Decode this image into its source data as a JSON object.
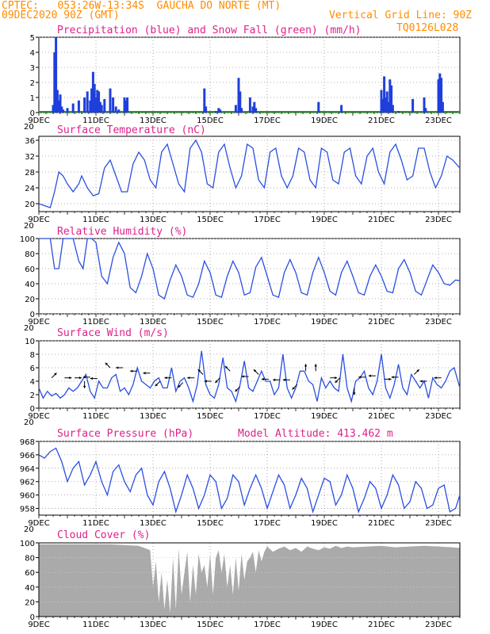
{
  "header": {
    "line1": "CPTEC:   053:26W-13:34S  GAUCHA DO NORTE (MT)",
    "line2_left": "09DEC2020 90Z (GMT)",
    "line2_right": "Vertical Grid Line: 90Z",
    "line3_right": "TQ0126L028"
  },
  "colors": {
    "precip": "#1f3fdc",
    "snow": "#1aa01a",
    "line": "#2a4fe0",
    "cloud": "#aaaaaa",
    "title": "#e0208a",
    "header": "#ff8c00"
  },
  "x_ticks": [
    "9DEC",
    "11DEC",
    "13DEC",
    "15DEC",
    "17DEC",
    "19DEC",
    "21DEC",
    "23DEC"
  ],
  "x_tick_top_fragment": "20",
  "chart_data": [
    {
      "type": "bar",
      "title": "Precipitation (blue) and Snow Fall (green) (mm/h)",
      "ylim": [
        0,
        5
      ],
      "yticks": [
        0,
        1,
        2,
        3,
        4,
        5
      ],
      "x_days": [
        0.5,
        0.55,
        0.6,
        0.65,
        0.7,
        0.75,
        0.8,
        0.85,
        1.0,
        1.2,
        1.4,
        1.6,
        1.7,
        1.8,
        1.85,
        1.9,
        1.95,
        2.0,
        2.05,
        2.1,
        2.15,
        2.2,
        2.3,
        2.5,
        2.6,
        2.7,
        2.8,
        3.0,
        3.05,
        3.1,
        5.8,
        5.85,
        6.2,
        6.3,
        6.35,
        6.9,
        7.0,
        7.05,
        7.1,
        7.4,
        7.5,
        7.55,
        7.6,
        9.8,
        10.6,
        12.0,
        12.05,
        12.1,
        12.15,
        12.2,
        12.25,
        12.3,
        12.35,
        12.4,
        12.6,
        13.1,
        13.5,
        13.55,
        14.0,
        14.05,
        14.1,
        14.15
      ],
      "values": [
        0.5,
        4.0,
        5.0,
        1.5,
        0.8,
        1.2,
        0.4,
        0.2,
        0.3,
        0.6,
        0.8,
        1.0,
        1.4,
        0.8,
        1.6,
        2.7,
        1.9,
        1.0,
        1.5,
        1.4,
        0.7,
        0.5,
        0.9,
        1.6,
        1.0,
        0.4,
        0.2,
        1.0,
        0.8,
        1.0,
        1.6,
        0.4,
        0.1,
        0.3,
        0.2,
        0.5,
        2.3,
        1.4,
        0.3,
        1.0,
        0.4,
        0.7,
        0.3,
        0.7,
        0.5,
        1.5,
        0.9,
        2.4,
        1.0,
        1.4,
        0.7,
        2.2,
        1.8,
        0.5,
        0.1,
        0.9,
        1.0,
        0.3,
        2.2,
        2.6,
        2.3,
        0.7
      ],
      "snow_values": 0,
      "xlim": [
        0,
        14.75
      ]
    },
    {
      "type": "line",
      "title": "Surface Temperature (nC)",
      "ylim": [
        18,
        37
      ],
      "yticks": [
        20,
        24,
        28,
        32,
        36
      ],
      "x_days": [
        0,
        0.2,
        0.4,
        0.55,
        0.7,
        0.85,
        1.0,
        1.2,
        1.4,
        1.5,
        1.7,
        1.9,
        2.1,
        2.3,
        2.5,
        2.7,
        2.9,
        3.1,
        3.3,
        3.5,
        3.7,
        3.9,
        4.1,
        4.3,
        4.5,
        4.7,
        4.9,
        5.1,
        5.3,
        5.5,
        5.7,
        5.9,
        6.1,
        6.3,
        6.5,
        6.7,
        6.9,
        7.1,
        7.3,
        7.5,
        7.7,
        7.9,
        8.1,
        8.3,
        8.5,
        8.7,
        8.9,
        9.1,
        9.3,
        9.5,
        9.7,
        9.9,
        10.1,
        10.3,
        10.5,
        10.7,
        10.9,
        11.1,
        11.3,
        11.5,
        11.7,
        11.9,
        12.1,
        12.3,
        12.5,
        12.7,
        12.9,
        13.1,
        13.3,
        13.5,
        13.7,
        13.9,
        14.1,
        14.3,
        14.5,
        14.75
      ],
      "values": [
        20,
        19.5,
        19,
        23,
        28,
        27,
        25,
        23,
        25,
        27,
        24,
        22,
        22.5,
        29,
        31,
        27,
        23,
        23,
        30,
        33,
        31,
        26,
        24,
        33,
        35,
        30,
        25,
        23,
        34,
        36,
        33,
        25,
        24,
        33,
        35,
        29,
        24,
        27,
        35,
        34,
        26,
        24,
        33,
        34,
        27,
        24,
        27,
        34,
        33,
        26,
        24,
        34,
        33,
        26,
        25,
        33,
        34,
        27,
        25,
        32,
        34,
        28,
        25,
        33,
        35,
        31,
        26,
        27,
        34,
        34,
        28,
        24,
        27,
        32,
        31,
        29
      ],
      "xlim": [
        0,
        14.75
      ]
    },
    {
      "type": "line",
      "title": "Relative Humidity (%)",
      "ylim": [
        0,
        100
      ],
      "yticks": [
        0,
        20,
        40,
        60,
        80,
        100
      ],
      "x_days": [
        0,
        0.2,
        0.4,
        0.55,
        0.7,
        0.85,
        1.0,
        1.2,
        1.4,
        1.55,
        1.7,
        1.85,
        2.0,
        2.2,
        2.4,
        2.6,
        2.8,
        3.0,
        3.2,
        3.4,
        3.6,
        3.8,
        4.0,
        4.2,
        4.4,
        4.6,
        4.8,
        5.0,
        5.2,
        5.4,
        5.6,
        5.8,
        6.0,
        6.2,
        6.4,
        6.6,
        6.8,
        7.0,
        7.2,
        7.4,
        7.6,
        7.8,
        8.0,
        8.2,
        8.4,
        8.6,
        8.8,
        9.0,
        9.2,
        9.4,
        9.6,
        9.8,
        10.0,
        10.2,
        10.4,
        10.6,
        10.8,
        11.0,
        11.2,
        11.4,
        11.6,
        11.8,
        12.0,
        12.2,
        12.4,
        12.6,
        12.8,
        13.0,
        13.2,
        13.4,
        13.6,
        13.8,
        14.0,
        14.2,
        14.4,
        14.6,
        14.75
      ],
      "values": [
        100,
        100,
        100,
        60,
        60,
        100,
        100,
        100,
        70,
        60,
        100,
        100,
        95,
        50,
        40,
        75,
        95,
        80,
        35,
        28,
        50,
        80,
        60,
        25,
        20,
        45,
        65,
        50,
        25,
        22,
        40,
        70,
        55,
        25,
        22,
        50,
        70,
        55,
        25,
        28,
        62,
        75,
        50,
        25,
        22,
        55,
        72,
        55,
        28,
        25,
        55,
        75,
        55,
        30,
        25,
        55,
        70,
        50,
        28,
        25,
        50,
        65,
        50,
        30,
        28,
        60,
        72,
        55,
        30,
        25,
        45,
        65,
        55,
        40,
        38,
        45,
        44
      ],
      "xlim": [
        0,
        14.75
      ]
    },
    {
      "type": "line",
      "title": "Surface Wind (m/s)",
      "ylim": [
        0,
        10
      ],
      "yticks": [
        0,
        2,
        4,
        6,
        8,
        10
      ],
      "x_days": [
        0,
        0.15,
        0.3,
        0.45,
        0.6,
        0.75,
        0.9,
        1.05,
        1.2,
        1.35,
        1.5,
        1.65,
        1.8,
        1.95,
        2.1,
        2.25,
        2.4,
        2.55,
        2.7,
        2.85,
        3.0,
        3.15,
        3.3,
        3.45,
        3.6,
        3.75,
        3.9,
        4.05,
        4.2,
        4.35,
        4.5,
        4.65,
        4.8,
        4.95,
        5.1,
        5.25,
        5.4,
        5.55,
        5.7,
        5.85,
        6.0,
        6.15,
        6.3,
        6.45,
        6.6,
        6.75,
        6.9,
        7.05,
        7.2,
        7.35,
        7.5,
        7.65,
        7.8,
        7.95,
        8.1,
        8.25,
        8.4,
        8.55,
        8.7,
        8.85,
        9.0,
        9.15,
        9.3,
        9.45,
        9.6,
        9.75,
        9.9,
        10.05,
        10.2,
        10.35,
        10.5,
        10.65,
        10.8,
        10.95,
        11.1,
        11.25,
        11.4,
        11.55,
        11.7,
        11.85,
        12.0,
        12.15,
        12.3,
        12.45,
        12.6,
        12.75,
        12.9,
        13.05,
        13.2,
        13.35,
        13.5,
        13.65,
        13.8,
        13.95,
        14.1,
        14.25,
        14.4,
        14.55,
        14.75
      ],
      "values": [
        3,
        1.5,
        2.5,
        1.8,
        2.2,
        1.5,
        2,
        3,
        2.5,
        3,
        4,
        5,
        2.5,
        1.5,
        4,
        3,
        3,
        4.5,
        5,
        2.5,
        3,
        2,
        3.5,
        6,
        4,
        3.5,
        3,
        4,
        4.5,
        3,
        3,
        6,
        2.5,
        4,
        4.5,
        3,
        1,
        3.5,
        8.5,
        3.5,
        2,
        1.5,
        3.5,
        7.5,
        3,
        2.5,
        1,
        3.5,
        7,
        3,
        2.5,
        4,
        5.5,
        4,
        4,
        2,
        3,
        8,
        3,
        1.5,
        3,
        5.5,
        5.5,
        4,
        3.5,
        1,
        4.5,
        3,
        4,
        3,
        2.5,
        8,
        3,
        1,
        4,
        4.5,
        5.5,
        3,
        2,
        4,
        8,
        3,
        1.5,
        3.5,
        6.5,
        3,
        2,
        5,
        4,
        3,
        4,
        1.5,
        4.5,
        3.5,
        3,
        4,
        5.5,
        6,
        3
      ],
      "wind_barbs": [
        [
          0.45,
          4.5,
          "ne"
        ],
        [
          0.9,
          4.5,
          "e"
        ],
        [
          1.25,
          4.5,
          "e"
        ],
        [
          1.6,
          4.0,
          "s"
        ],
        [
          1.8,
          4.6,
          "w"
        ],
        [
          2.05,
          4.4,
          "w"
        ],
        [
          2.5,
          6.0,
          "nw"
        ],
        [
          2.95,
          6.0,
          "w"
        ],
        [
          3.45,
          5.5,
          "w"
        ],
        [
          3.9,
          5.2,
          "w"
        ],
        [
          4.25,
          4.0,
          "sw"
        ],
        [
          4.65,
          4.5,
          "w"
        ],
        [
          5.05,
          3.8,
          "sw"
        ],
        [
          5.45,
          4.5,
          "w"
        ],
        [
          5.75,
          5.0,
          "nw"
        ],
        [
          6.05,
          4.0,
          "w"
        ],
        [
          6.35,
          4.5,
          "sw"
        ],
        [
          6.7,
          5.5,
          "nw"
        ],
        [
          7.05,
          3.2,
          "sw"
        ],
        [
          7.35,
          4.7,
          "w"
        ],
        [
          7.7,
          5.0,
          "nw"
        ],
        [
          8.05,
          4.3,
          "w"
        ],
        [
          8.45,
          4.2,
          "w"
        ],
        [
          8.8,
          4.2,
          "w"
        ],
        [
          9.05,
          3.5,
          "sw"
        ],
        [
          9.35,
          5.5,
          "n"
        ],
        [
          9.7,
          5.5,
          "n"
        ],
        [
          10.2,
          4.5,
          "e"
        ],
        [
          10.55,
          4.5,
          "sw"
        ],
        [
          11.05,
          3.0,
          "s"
        ],
        [
          11.45,
          4.6,
          "w"
        ],
        [
          11.8,
          4.8,
          "w"
        ],
        [
          12.1,
          4.3,
          "e"
        ],
        [
          12.6,
          4.6,
          "w"
        ],
        [
          13.15,
          5.0,
          "ne"
        ],
        [
          13.6,
          4.0,
          "w"
        ],
        [
          14.1,
          4.5,
          "w"
        ]
      ],
      "xlim": [
        0,
        14.75
      ]
    },
    {
      "type": "line",
      "title": "Surface Pressure (hPa)",
      "subtitle": "Model Altitude: 413.462  m",
      "ylim": [
        957,
        968
      ],
      "yticks": [
        958,
        960,
        962,
        964,
        966,
        968
      ],
      "x_days": [
        0,
        0.2,
        0.4,
        0.6,
        0.8,
        1.0,
        1.2,
        1.4,
        1.6,
        1.8,
        2.0,
        2.2,
        2.4,
        2.6,
        2.8,
        3.0,
        3.2,
        3.4,
        3.6,
        3.8,
        4.0,
        4.2,
        4.4,
        4.6,
        4.8,
        5.0,
        5.2,
        5.4,
        5.6,
        5.8,
        6.0,
        6.2,
        6.4,
        6.6,
        6.8,
        7.0,
        7.2,
        7.4,
        7.6,
        7.8,
        8.0,
        8.2,
        8.4,
        8.6,
        8.8,
        9.0,
        9.2,
        9.4,
        9.6,
        9.8,
        10.0,
        10.2,
        10.4,
        10.6,
        10.8,
        11.0,
        11.2,
        11.4,
        11.6,
        11.8,
        12.0,
        12.2,
        12.4,
        12.6,
        12.8,
        13.0,
        13.2,
        13.4,
        13.6,
        13.8,
        14.0,
        14.2,
        14.4,
        14.6,
        14.75
      ],
      "values": [
        966,
        965.5,
        966.5,
        967,
        965,
        962,
        964,
        965,
        961.5,
        963,
        965,
        962,
        960,
        963.5,
        964.5,
        962,
        960.5,
        963,
        964,
        960,
        958.5,
        962,
        963.5,
        961,
        957.5,
        960,
        963,
        961,
        958,
        960,
        963,
        962,
        958,
        959.5,
        963,
        962,
        958.5,
        961,
        963,
        961,
        958,
        960.5,
        963,
        961.5,
        958,
        960,
        962.5,
        961,
        957.5,
        960,
        962.5,
        962,
        958.5,
        960,
        963,
        961,
        957.5,
        959.5,
        962,
        961,
        958,
        960,
        963,
        961.5,
        958,
        959,
        962,
        961,
        958,
        958.5,
        961,
        961.5,
        957.5,
        958,
        960
      ],
      "xlim": [
        0,
        14.75
      ]
    },
    {
      "type": "area",
      "title": "Cloud Cover (%)",
      "ylim": [
        0,
        100
      ],
      "yticks": [
        0,
        20,
        40,
        60,
        80,
        100
      ],
      "x_days": [
        0,
        0.5,
        1.0,
        1.5,
        2.0,
        2.5,
        3.0,
        3.5,
        3.9,
        4.0,
        4.1,
        4.2,
        4.3,
        4.4,
        4.5,
        4.6,
        4.7,
        4.8,
        4.9,
        5.0,
        5.1,
        5.2,
        5.3,
        5.4,
        5.5,
        5.6,
        5.7,
        5.8,
        5.9,
        6.0,
        6.1,
        6.2,
        6.3,
        6.4,
        6.5,
        6.6,
        6.7,
        6.8,
        6.9,
        7.0,
        7.1,
        7.2,
        7.3,
        7.4,
        7.5,
        7.6,
        7.7,
        7.8,
        7.9,
        8.0,
        8.2,
        8.4,
        8.6,
        8.8,
        9.0,
        9.2,
        9.4,
        9.6,
        9.8,
        10.0,
        10.2,
        10.4,
        10.6,
        10.8,
        11.0,
        11.5,
        12.0,
        12.5,
        13.0,
        13.5,
        14.0,
        14.5,
        14.75
      ],
      "values": [
        98,
        98,
        98,
        98,
        98,
        98,
        97,
        96,
        90,
        40,
        75,
        20,
        60,
        10,
        50,
        5,
        80,
        10,
        92,
        30,
        60,
        88,
        20,
        70,
        30,
        85,
        60,
        70,
        40,
        85,
        30,
        80,
        90,
        60,
        85,
        40,
        70,
        30,
        80,
        35,
        85,
        50,
        75,
        80,
        88,
        60,
        90,
        75,
        88,
        95,
        88,
        92,
        95,
        90,
        93,
        88,
        95,
        92,
        90,
        94,
        92,
        96,
        93,
        95,
        94,
        95,
        96,
        94,
        95,
        96,
        95,
        94,
        93
      ],
      "xlim": [
        0,
        14.75
      ]
    }
  ]
}
